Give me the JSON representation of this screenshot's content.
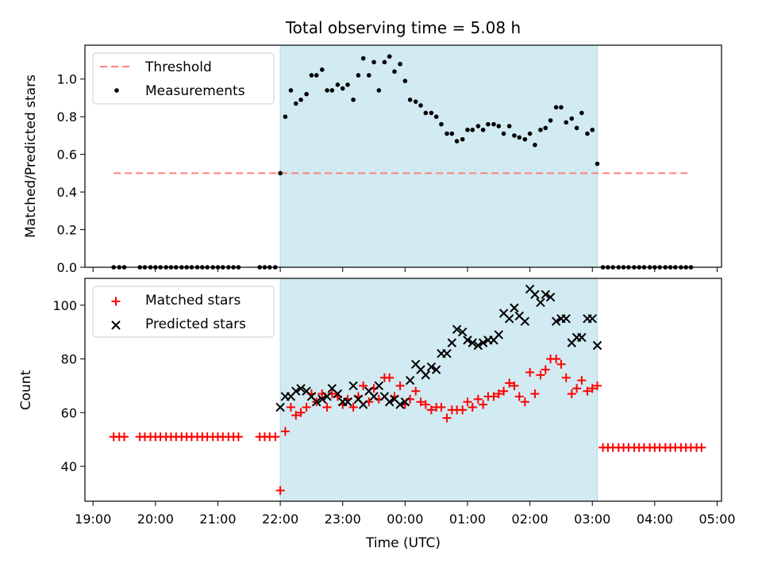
{
  "chart_data": [
    {
      "type": "scatter",
      "title": "Total observing time = 5.08 h",
      "xlabel": "",
      "ylabel": "Matched/Predicted stars",
      "ylim": [
        0,
        1.18
      ],
      "yticks": [
        "0.0",
        "0.2",
        "0.4",
        "0.6",
        "0.8",
        "1.0"
      ],
      "xlim_hours": [
        18.87,
        29.07
      ],
      "observing_window_hours": [
        22.0,
        27.08
      ],
      "shade_color": "#add8e6",
      "legend": {
        "placement": "top-left",
        "entries": [
          "Threshold",
          "Measurements"
        ]
      },
      "threshold": {
        "name": "Threshold",
        "value": 0.5,
        "x_range_hours": [
          19.33,
          28.59
        ],
        "color": "#ff7f7f",
        "style": "dashed"
      },
      "measurements": {
        "name": "Measurements",
        "color": "#000000",
        "points": [
          [
            19.33,
            0
          ],
          [
            19.42,
            0
          ],
          [
            19.5,
            0
          ],
          [
            19.75,
            0
          ],
          [
            19.83,
            0
          ],
          [
            19.92,
            0
          ],
          [
            20.0,
            0
          ],
          [
            20.08,
            0
          ],
          [
            20.17,
            0
          ],
          [
            20.25,
            0
          ],
          [
            20.33,
            0
          ],
          [
            20.42,
            0
          ],
          [
            20.5,
            0
          ],
          [
            20.58,
            0
          ],
          [
            20.67,
            0
          ],
          [
            20.75,
            0
          ],
          [
            20.83,
            0
          ],
          [
            20.92,
            0
          ],
          [
            21.0,
            0
          ],
          [
            21.08,
            0
          ],
          [
            21.17,
            0
          ],
          [
            21.25,
            0
          ],
          [
            21.33,
            0
          ],
          [
            21.67,
            0
          ],
          [
            21.75,
            0
          ],
          [
            21.83,
            0
          ],
          [
            21.92,
            0
          ],
          [
            22.0,
            0.5
          ],
          [
            22.08,
            0.8
          ],
          [
            22.17,
            0.94
          ],
          [
            22.25,
            0.87
          ],
          [
            22.33,
            0.89
          ],
          [
            22.42,
            0.92
          ],
          [
            22.5,
            1.02
          ],
          [
            22.58,
            1.02
          ],
          [
            22.67,
            1.05
          ],
          [
            22.75,
            0.94
          ],
          [
            22.83,
            0.94
          ],
          [
            22.92,
            0.97
          ],
          [
            23.0,
            0.95
          ],
          [
            23.08,
            0.97
          ],
          [
            23.17,
            0.89
          ],
          [
            23.25,
            1.02
          ],
          [
            23.33,
            1.11
          ],
          [
            23.42,
            1.02
          ],
          [
            23.5,
            1.09
          ],
          [
            23.58,
            0.94
          ],
          [
            23.67,
            1.09
          ],
          [
            23.75,
            1.12
          ],
          [
            23.83,
            1.04
          ],
          [
            23.92,
            1.08
          ],
          [
            24.0,
            0.99
          ],
          [
            24.08,
            0.89
          ],
          [
            24.17,
            0.88
          ],
          [
            24.25,
            0.86
          ],
          [
            24.33,
            0.82
          ],
          [
            24.42,
            0.82
          ],
          [
            24.5,
            0.8
          ],
          [
            24.58,
            0.76
          ],
          [
            24.67,
            0.71
          ],
          [
            24.75,
            0.71
          ],
          [
            24.83,
            0.67
          ],
          [
            24.92,
            0.68
          ],
          [
            25.0,
            0.73
          ],
          [
            25.08,
            0.73
          ],
          [
            25.17,
            0.75
          ],
          [
            25.25,
            0.73
          ],
          [
            25.33,
            0.76
          ],
          [
            25.42,
            0.76
          ],
          [
            25.5,
            0.75
          ],
          [
            25.58,
            0.71
          ],
          [
            25.67,
            0.75
          ],
          [
            25.75,
            0.7
          ],
          [
            25.83,
            0.69
          ],
          [
            25.92,
            0.68
          ],
          [
            26.0,
            0.71
          ],
          [
            26.08,
            0.65
          ],
          [
            26.17,
            0.73
          ],
          [
            26.25,
            0.74
          ],
          [
            26.33,
            0.78
          ],
          [
            26.42,
            0.85
          ],
          [
            26.5,
            0.85
          ],
          [
            26.58,
            0.77
          ],
          [
            26.67,
            0.79
          ],
          [
            26.75,
            0.74
          ],
          [
            26.83,
            0.82
          ],
          [
            26.92,
            0.71
          ],
          [
            27.0,
            0.73
          ],
          [
            27.08,
            0.55
          ],
          [
            27.17,
            0
          ],
          [
            27.25,
            0
          ],
          [
            27.33,
            0
          ],
          [
            27.42,
            0
          ],
          [
            27.5,
            0
          ],
          [
            27.58,
            0
          ],
          [
            27.67,
            0
          ],
          [
            27.75,
            0
          ],
          [
            27.83,
            0
          ],
          [
            27.92,
            0
          ],
          [
            28.0,
            0
          ],
          [
            28.08,
            0
          ],
          [
            28.17,
            0
          ],
          [
            28.25,
            0
          ],
          [
            28.33,
            0
          ],
          [
            28.42,
            0
          ],
          [
            28.5,
            0
          ],
          [
            28.58,
            0
          ]
        ]
      }
    },
    {
      "type": "scatter",
      "title": "",
      "xlabel": "Time (UTC)",
      "ylabel": "Count",
      "ylim": [
        27,
        110
      ],
      "yticks": [
        "40",
        "60",
        "80",
        "100"
      ],
      "xlim_hours": [
        18.87,
        29.07
      ],
      "xticks": [
        "19:00",
        "20:00",
        "21:00",
        "22:00",
        "23:00",
        "00:00",
        "01:00",
        "02:00",
        "03:00",
        "04:00",
        "05:00"
      ],
      "observing_window_hours": [
        22.0,
        27.08
      ],
      "shade_color": "#add8e6",
      "legend": {
        "placement": "top-left",
        "entries": [
          "Matched stars",
          "Predicted stars"
        ]
      },
      "series": [
        {
          "name": "Matched stars",
          "marker": "+",
          "color": "#ff0000",
          "points": [
            [
              19.33,
              51
            ],
            [
              19.42,
              51
            ],
            [
              19.5,
              51
            ],
            [
              19.75,
              51
            ],
            [
              19.83,
              51
            ],
            [
              19.92,
              51
            ],
            [
              20.0,
              51
            ],
            [
              20.08,
              51
            ],
            [
              20.17,
              51
            ],
            [
              20.25,
              51
            ],
            [
              20.33,
              51
            ],
            [
              20.42,
              51
            ],
            [
              20.5,
              51
            ],
            [
              20.58,
              51
            ],
            [
              20.67,
              51
            ],
            [
              20.75,
              51
            ],
            [
              20.83,
              51
            ],
            [
              20.92,
              51
            ],
            [
              21.0,
              51
            ],
            [
              21.08,
              51
            ],
            [
              21.17,
              51
            ],
            [
              21.25,
              51
            ],
            [
              21.33,
              51
            ],
            [
              21.67,
              51
            ],
            [
              21.75,
              51
            ],
            [
              21.83,
              51
            ],
            [
              21.92,
              51
            ],
            [
              22.0,
              31
            ],
            [
              22.08,
              53
            ],
            [
              22.17,
              62
            ],
            [
              22.25,
              59
            ],
            [
              22.33,
              60
            ],
            [
              22.42,
              62
            ],
            [
              22.5,
              67
            ],
            [
              22.58,
              64
            ],
            [
              22.67,
              67
            ],
            [
              22.75,
              62
            ],
            [
              22.83,
              67
            ],
            [
              22.92,
              66
            ],
            [
              23.0,
              63
            ],
            [
              23.08,
              65
            ],
            [
              23.17,
              62
            ],
            [
              23.25,
              66
            ],
            [
              23.33,
              70
            ],
            [
              23.42,
              64
            ],
            [
              23.5,
              69
            ],
            [
              23.58,
              65
            ],
            [
              23.67,
              73
            ],
            [
              23.75,
              73
            ],
            [
              23.83,
              66
            ],
            [
              23.92,
              70
            ],
            [
              24.0,
              63
            ],
            [
              24.08,
              65
            ],
            [
              24.17,
              68
            ],
            [
              24.25,
              64
            ],
            [
              24.33,
              63
            ],
            [
              24.42,
              61
            ],
            [
              24.5,
              62
            ],
            [
              24.58,
              62
            ],
            [
              24.67,
              58
            ],
            [
              24.75,
              61
            ],
            [
              24.83,
              61
            ],
            [
              24.92,
              61
            ],
            [
              25.0,
              64
            ],
            [
              25.08,
              62
            ],
            [
              25.17,
              65
            ],
            [
              25.25,
              63
            ],
            [
              25.33,
              66
            ],
            [
              25.42,
              66
            ],
            [
              25.5,
              67
            ],
            [
              25.58,
              68
            ],
            [
              25.67,
              71
            ],
            [
              25.75,
              70
            ],
            [
              25.83,
              66
            ],
            [
              25.92,
              64
            ],
            [
              26.0,
              75
            ],
            [
              26.08,
              67
            ],
            [
              26.17,
              74
            ],
            [
              26.25,
              76
            ],
            [
              26.33,
              80
            ],
            [
              26.42,
              80
            ],
            [
              26.5,
              78
            ],
            [
              26.58,
              73
            ],
            [
              26.67,
              67
            ],
            [
              26.75,
              69
            ],
            [
              26.83,
              72
            ],
            [
              26.92,
              68
            ],
            [
              27.0,
              69
            ],
            [
              27.08,
              70
            ],
            [
              27.17,
              47
            ],
            [
              27.25,
              47
            ],
            [
              27.33,
              47
            ],
            [
              27.42,
              47
            ],
            [
              27.5,
              47
            ],
            [
              27.58,
              47
            ],
            [
              27.67,
              47
            ],
            [
              27.75,
              47
            ],
            [
              27.83,
              47
            ],
            [
              27.92,
              47
            ],
            [
              28.0,
              47
            ],
            [
              28.08,
              47
            ],
            [
              28.17,
              47
            ],
            [
              28.25,
              47
            ],
            [
              28.33,
              47
            ],
            [
              28.42,
              47
            ],
            [
              28.5,
              47
            ],
            [
              28.58,
              47
            ],
            [
              28.67,
              47
            ],
            [
              28.75,
              47
            ]
          ]
        },
        {
          "name": "Predicted stars",
          "marker": "x",
          "color": "#000000",
          "points": [
            [
              22.0,
              62
            ],
            [
              22.08,
              66
            ],
            [
              22.17,
              66
            ],
            [
              22.25,
              68
            ],
            [
              22.33,
              69
            ],
            [
              22.42,
              68
            ],
            [
              22.5,
              66
            ],
            [
              22.58,
              64
            ],
            [
              22.67,
              65
            ],
            [
              22.75,
              66
            ],
            [
              22.83,
              69
            ],
            [
              22.92,
              67
            ],
            [
              23.0,
              64
            ],
            [
              23.08,
              64
            ],
            [
              23.17,
              70
            ],
            [
              23.25,
              65
            ],
            [
              23.33,
              63
            ],
            [
              23.42,
              68
            ],
            [
              23.5,
              66
            ],
            [
              23.58,
              70
            ],
            [
              23.67,
              66
            ],
            [
              23.75,
              64
            ],
            [
              23.83,
              65
            ],
            [
              23.92,
              63
            ],
            [
              24.0,
              64
            ],
            [
              24.08,
              72
            ],
            [
              24.17,
              78
            ],
            [
              24.25,
              76
            ],
            [
              24.33,
              74
            ],
            [
              24.42,
              77
            ],
            [
              24.5,
              76
            ],
            [
              24.58,
              82
            ],
            [
              24.67,
              82
            ],
            [
              24.75,
              86
            ],
            [
              24.83,
              91
            ],
            [
              24.92,
              90
            ],
            [
              25.0,
              87
            ],
            [
              25.08,
              86
            ],
            [
              25.17,
              85
            ],
            [
              25.25,
              86
            ],
            [
              25.33,
              87
            ],
            [
              25.42,
              87
            ],
            [
              25.5,
              89
            ],
            [
              25.58,
              97
            ],
            [
              25.67,
              95
            ],
            [
              25.75,
              99
            ],
            [
              25.83,
              96
            ],
            [
              25.92,
              94
            ],
            [
              26.0,
              106
            ],
            [
              26.08,
              104
            ],
            [
              26.17,
              101
            ],
            [
              26.25,
              104
            ],
            [
              26.33,
              103
            ],
            [
              26.42,
              94
            ],
            [
              26.5,
              95
            ],
            [
              26.58,
              95
            ],
            [
              26.67,
              86
            ],
            [
              26.75,
              88
            ],
            [
              26.83,
              88
            ],
            [
              26.92,
              95
            ],
            [
              27.0,
              95
            ],
            [
              27.08,
              85
            ]
          ]
        }
      ]
    }
  ]
}
